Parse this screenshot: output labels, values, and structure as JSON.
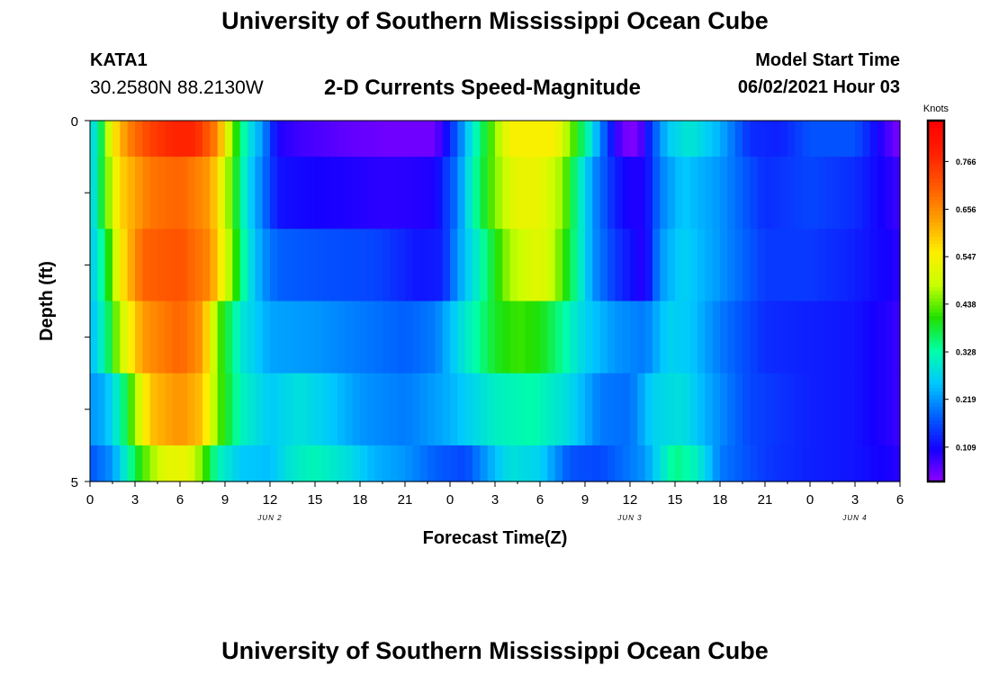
{
  "header": {
    "title": "University of Southern Mississippi Ocean Cube",
    "station_id": "KATA1",
    "coordinates": "30.2580N  88.2130W",
    "subtitle": "2-D Currents Speed-Magnitude",
    "model_start_label": "Model Start Time",
    "model_start_value": "06/02/2021 Hour 03"
  },
  "footer": {
    "title": "University of Southern Mississippi Ocean Cube"
  },
  "chart_data": {
    "type": "heatmap",
    "title": "2-D Currents Speed-Magnitude",
    "xlabel": "Forecast Time(Z)",
    "ylabel": "Depth (ft)",
    "x_tick_labels": [
      "0",
      "3",
      "6",
      "9",
      "12",
      "15",
      "18",
      "21",
      "0",
      "3",
      "6",
      "9",
      "12",
      "15",
      "18",
      "21",
      "0",
      "3",
      "6"
    ],
    "x_hours": [
      0,
      3,
      6,
      9,
      12,
      15,
      18,
      21,
      24,
      27,
      30,
      33,
      36,
      39,
      42,
      45,
      48,
      51,
      54
    ],
    "date_labels": [
      {
        "label": "JUN 2",
        "hour": 12
      },
      {
        "label": "JUN 3",
        "hour": 36
      },
      {
        "label": "JUN 4",
        "hour": 51
      }
    ],
    "xlim": [
      0,
      54
    ],
    "y_tick_labels": [
      "0",
      "5"
    ],
    "ylim": [
      0,
      5
    ],
    "depth_bands_ft": [
      [
        0,
        0.5
      ],
      [
        0.5,
        1.5
      ],
      [
        1.5,
        2.5
      ],
      [
        2.5,
        3.5
      ],
      [
        3.5,
        4.5
      ],
      [
        4.5,
        5
      ]
    ],
    "colorbar": {
      "label": "Knots",
      "ticks": [
        "0.109",
        "0.219",
        "0.328",
        "0.438",
        "0.547",
        "0.656",
        "0.766"
      ],
      "range": [
        0.03,
        0.86
      ]
    },
    "speed_knots_keyframes": [
      {
        "depth_band": "0-0.5",
        "points": [
          [
            0,
            0.25
          ],
          [
            0.8,
            0.38
          ],
          [
            1.5,
            0.55
          ],
          [
            2.5,
            0.66
          ],
          [
            4,
            0.74
          ],
          [
            5.5,
            0.78
          ],
          [
            7,
            0.78
          ],
          [
            8.5,
            0.66
          ],
          [
            9.5,
            0.44
          ],
          [
            10.5,
            0.3
          ],
          [
            11.5,
            0.22
          ],
          [
            12.5,
            0.1
          ],
          [
            14,
            0.08
          ],
          [
            17,
            0.06
          ],
          [
            20,
            0.05
          ],
          [
            23,
            0.05
          ],
          [
            24.5,
            0.18
          ],
          [
            25.5,
            0.3
          ],
          [
            26.5,
            0.4
          ],
          [
            28,
            0.55
          ],
          [
            31,
            0.55
          ],
          [
            32.5,
            0.4
          ],
          [
            33.5,
            0.28
          ],
          [
            34.5,
            0.15
          ],
          [
            35.5,
            0.05
          ],
          [
            36.5,
            0.04
          ],
          [
            37.5,
            0.16
          ],
          [
            38.5,
            0.26
          ],
          [
            40,
            0.3
          ],
          [
            42,
            0.24
          ],
          [
            44,
            0.14
          ],
          [
            46,
            0.13
          ],
          [
            48,
            0.17
          ],
          [
            51,
            0.17
          ],
          [
            52,
            0.13
          ],
          [
            53.5,
            0.06
          ],
          [
            54,
            0.04
          ]
        ]
      },
      {
        "depth_band": "0.5-1.5",
        "points": [
          [
            0,
            0.25
          ],
          [
            1,
            0.42
          ],
          [
            2,
            0.58
          ],
          [
            4,
            0.68
          ],
          [
            6,
            0.7
          ],
          [
            8,
            0.64
          ],
          [
            9.5,
            0.42
          ],
          [
            10.5,
            0.28
          ],
          [
            11.5,
            0.2
          ],
          [
            12.5,
            0.12
          ],
          [
            14,
            0.11
          ],
          [
            17,
            0.1
          ],
          [
            20,
            0.09
          ],
          [
            23,
            0.1
          ],
          [
            24.5,
            0.2
          ],
          [
            25.5,
            0.32
          ],
          [
            27,
            0.45
          ],
          [
            28.5,
            0.53
          ],
          [
            30,
            0.53
          ],
          [
            31.5,
            0.46
          ],
          [
            32.5,
            0.33
          ],
          [
            33.5,
            0.22
          ],
          [
            35,
            0.13
          ],
          [
            36,
            0.1
          ],
          [
            37,
            0.1
          ],
          [
            38,
            0.2
          ],
          [
            39.5,
            0.26
          ],
          [
            42,
            0.22
          ],
          [
            45,
            0.14
          ],
          [
            48,
            0.16
          ],
          [
            51,
            0.14
          ],
          [
            53.5,
            0.09
          ],
          [
            54,
            0.08
          ]
        ]
      },
      {
        "depth_band": "1.5-2.5",
        "points": [
          [
            0,
            0.25
          ],
          [
            1,
            0.36
          ],
          [
            2,
            0.55
          ],
          [
            3.5,
            0.7
          ],
          [
            6,
            0.72
          ],
          [
            8,
            0.66
          ],
          [
            9.5,
            0.44
          ],
          [
            10.5,
            0.3
          ],
          [
            11.5,
            0.22
          ],
          [
            12.5,
            0.18
          ],
          [
            15,
            0.17
          ],
          [
            19,
            0.16
          ],
          [
            22,
            0.12
          ],
          [
            23.5,
            0.13
          ],
          [
            24.5,
            0.22
          ],
          [
            26,
            0.32
          ],
          [
            28,
            0.47
          ],
          [
            30,
            0.52
          ],
          [
            31,
            0.47
          ],
          [
            32.5,
            0.33
          ],
          [
            33.5,
            0.22
          ],
          [
            35,
            0.15
          ],
          [
            36,
            0.12
          ],
          [
            37,
            0.09
          ],
          [
            38,
            0.22
          ],
          [
            39.5,
            0.27
          ],
          [
            42,
            0.22
          ],
          [
            45,
            0.15
          ],
          [
            48,
            0.15
          ],
          [
            51,
            0.13
          ],
          [
            53.5,
            0.1
          ],
          [
            54,
            0.09
          ]
        ]
      },
      {
        "depth_band": "2.5-3.5",
        "points": [
          [
            0,
            0.24
          ],
          [
            1,
            0.33
          ],
          [
            2,
            0.48
          ],
          [
            3.5,
            0.64
          ],
          [
            6,
            0.7
          ],
          [
            7.5,
            0.64
          ],
          [
            8.5,
            0.44
          ],
          [
            10,
            0.3
          ],
          [
            12,
            0.23
          ],
          [
            15,
            0.22
          ],
          [
            18,
            0.2
          ],
          [
            21,
            0.18
          ],
          [
            23,
            0.2
          ],
          [
            25,
            0.3
          ],
          [
            27,
            0.39
          ],
          [
            28.5,
            0.42
          ],
          [
            30,
            0.4
          ],
          [
            31.5,
            0.34
          ],
          [
            33,
            0.27
          ],
          [
            35,
            0.22
          ],
          [
            37,
            0.2
          ],
          [
            38.5,
            0.27
          ],
          [
            40,
            0.26
          ],
          [
            42,
            0.2
          ],
          [
            45,
            0.14
          ],
          [
            48,
            0.13
          ],
          [
            51,
            0.12
          ],
          [
            53.5,
            0.09
          ],
          [
            54,
            0.08
          ]
        ]
      },
      {
        "depth_band": "3.5-4.5",
        "points": [
          [
            0,
            0.22
          ],
          [
            1,
            0.24
          ],
          [
            2,
            0.32
          ],
          [
            3,
            0.46
          ],
          [
            4,
            0.6
          ],
          [
            6,
            0.65
          ],
          [
            7.5,
            0.6
          ],
          [
            8.5,
            0.44
          ],
          [
            10,
            0.32
          ],
          [
            12,
            0.26
          ],
          [
            14,
            0.29
          ],
          [
            16,
            0.26
          ],
          [
            18,
            0.22
          ],
          [
            21,
            0.2
          ],
          [
            24,
            0.24
          ],
          [
            27,
            0.31
          ],
          [
            29.5,
            0.33
          ],
          [
            32,
            0.28
          ],
          [
            34,
            0.2
          ],
          [
            36,
            0.19
          ],
          [
            37.5,
            0.27
          ],
          [
            39.5,
            0.29
          ],
          [
            41,
            0.24
          ],
          [
            44,
            0.16
          ],
          [
            48,
            0.13
          ],
          [
            51,
            0.12
          ],
          [
            53.5,
            0.09
          ],
          [
            54,
            0.08
          ]
        ]
      },
      {
        "depth_band": "4.5-5",
        "points": [
          [
            0,
            0.17
          ],
          [
            1.5,
            0.22
          ],
          [
            2.5,
            0.32
          ],
          [
            3.5,
            0.42
          ],
          [
            5,
            0.52
          ],
          [
            6.5,
            0.53
          ],
          [
            7.5,
            0.44
          ],
          [
            8.5,
            0.32
          ],
          [
            10,
            0.26
          ],
          [
            12,
            0.25
          ],
          [
            13.5,
            0.3
          ],
          [
            15,
            0.32
          ],
          [
            17,
            0.29
          ],
          [
            19,
            0.24
          ],
          [
            21,
            0.22
          ],
          [
            23,
            0.18
          ],
          [
            25,
            0.16
          ],
          [
            27,
            0.25
          ],
          [
            28,
            0.29
          ],
          [
            30,
            0.27
          ],
          [
            32,
            0.17
          ],
          [
            34,
            0.16
          ],
          [
            37,
            0.22
          ],
          [
            39,
            0.35
          ],
          [
            40.5,
            0.31
          ],
          [
            42,
            0.2
          ],
          [
            45,
            0.15
          ],
          [
            48,
            0.13
          ],
          [
            51,
            0.12
          ],
          [
            53.5,
            0.1
          ],
          [
            54,
            0.09
          ]
        ]
      }
    ]
  },
  "colors": {
    "background": "#ffffff",
    "axis": "#000000",
    "colormap": [
      "#9000ff",
      "#1400ff",
      "#0060ff",
      "#00c8ff",
      "#00ffa8",
      "#20e000",
      "#c8ff00",
      "#ffee00",
      "#ffa000",
      "#ff5a00",
      "#ff2000",
      "#ff0000"
    ]
  }
}
